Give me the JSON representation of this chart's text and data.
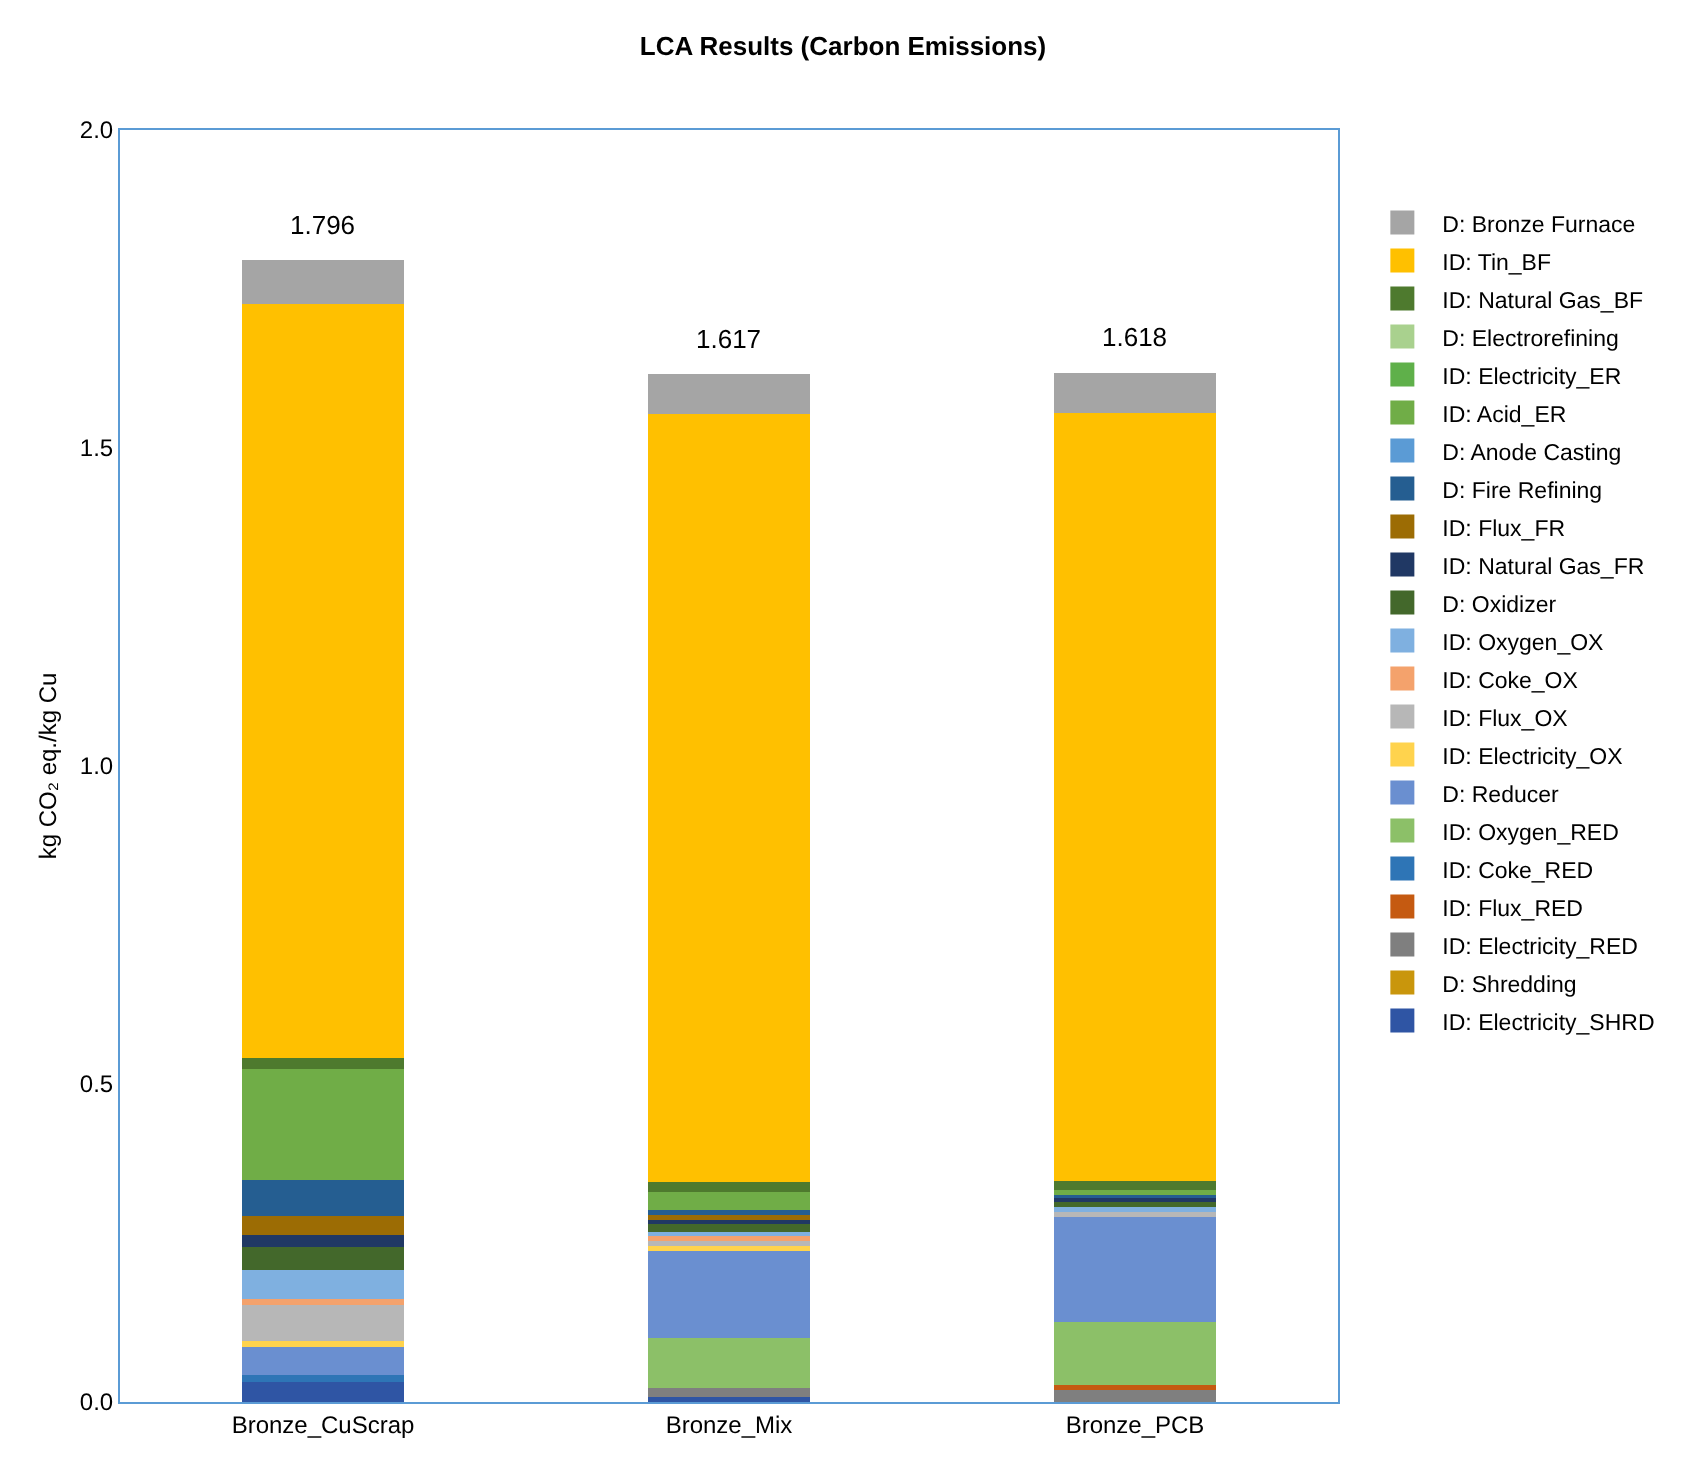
{
  "chart_data": {
    "type": "bar",
    "title": "LCA Results (Carbon Emissions)",
    "ylabel": "kg CO₂ eq./kg Cu",
    "categories": [
      "Bronze_CuScrap",
      "Bronze_Mix",
      "Bronze_PCB"
    ],
    "stacked": true,
    "ylim": [
      0,
      2
    ],
    "yticks": [
      {
        "value": 0,
        "label": "0.0"
      },
      {
        "value": 0.5,
        "label": "0.5"
      },
      {
        "value": 1,
        "label": "1.0"
      },
      {
        "value": 1.5,
        "label": "1.5"
      },
      {
        "value": 2,
        "label": "2.0"
      }
    ],
    "grid": false,
    "legend": "right",
    "totals": [
      "1.796",
      "1.617",
      "1.618"
    ],
    "series": [
      {
        "name": "ID: Electricity_SHRD",
        "color": "#2f55a4",
        "values": [
          0.032,
          0.008,
          0
        ]
      },
      {
        "name": "D: Shredding",
        "color": "#c9960c",
        "values": [
          0,
          0,
          0
        ]
      },
      {
        "name": "ID: Electricity_RED",
        "color": "#7f7f7f",
        "values": [
          0,
          0.014,
          0.021
        ]
      },
      {
        "name": "ID: Flux_RED",
        "color": "#c55a11",
        "values": [
          0,
          0,
          0.005
        ]
      },
      {
        "name": "ID: Coke_RED",
        "color": "#2e75b6",
        "values": [
          0.01,
          0,
          0
        ]
      },
      {
        "name": "ID: Oxygen_RED",
        "color": "#8cc068",
        "values": [
          0,
          0.079,
          0.1
        ]
      },
      {
        "name": "D: Reducer",
        "color": "#6a8fd0",
        "values": [
          0.044,
          0.137,
          0.165
        ]
      },
      {
        "name": "ID: Electricity_OX",
        "color": "#ffd34d",
        "values": [
          0.01,
          0.007,
          0
        ]
      },
      {
        "name": "ID: Flux_OX",
        "color": "#b7b7b7",
        "values": [
          0.056,
          0.008,
          0.008
        ]
      },
      {
        "name": "ID: Coke_OX",
        "color": "#f4a26c",
        "values": [
          0.01,
          0.008,
          0
        ]
      },
      {
        "name": "ID: Oxygen_OX",
        "color": "#7fb0e0",
        "values": [
          0.045,
          0.007,
          0.007
        ]
      },
      {
        "name": "D: Oxidizer",
        "color": "#43682b",
        "values": [
          0.037,
          0.014,
          0.008
        ]
      },
      {
        "name": "ID: Natural Gas_FR",
        "color": "#203864",
        "values": [
          0.018,
          0.006,
          0.007
        ]
      },
      {
        "name": "ID: Flux_FR",
        "color": "#9c6c04",
        "values": [
          0.03,
          0.006,
          0
        ]
      },
      {
        "name": "D: Fire Refining",
        "color": "#255e91",
        "values": [
          0.057,
          0.008,
          0.005
        ]
      },
      {
        "name": "D: Anode Casting",
        "color": "#5b9bd5",
        "values": [
          0,
          0,
          0
        ]
      },
      {
        "name": "ID: Acid_ER",
        "color": "#70ad47",
        "values": [
          0.174,
          0.028,
          0.008
        ]
      },
      {
        "name": "ID: Electricity_ER",
        "color": "#5fb04a",
        "values": [
          0,
          0,
          0
        ]
      },
      {
        "name": "D: Electrorefining",
        "color": "#a9d18e",
        "values": [
          0,
          0,
          0
        ]
      },
      {
        "name": "ID: Natural Gas_BF",
        "color": "#4e7a2e",
        "values": [
          0.018,
          0.016,
          0.013
        ]
      },
      {
        "name": "ID: Tin_BF",
        "color": "#ffc000",
        "values": [
          1.186,
          1.208,
          1.208
        ]
      },
      {
        "name": "D: Bronze Furnace",
        "color": "#a5a5a5",
        "values": [
          0.069,
          0.063,
          0.063
        ]
      }
    ]
  }
}
